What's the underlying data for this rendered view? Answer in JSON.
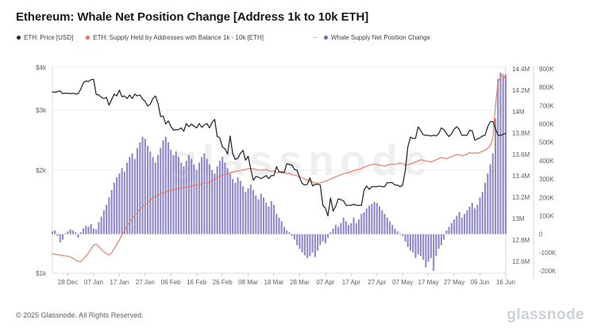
{
  "header": {
    "title": "Ethereum: Whale Net Position Change [Address 1k to 10k ETH]"
  },
  "legend": {
    "items": [
      {
        "label": "ETH: Price [USD]",
        "color": "#24292e"
      },
      {
        "label": "ETH: Supply Held by Addresses with Balance 1k - 10k [ETH]",
        "color": "#f06a4a"
      },
      {
        "label": "Whale Supply Net Position Change",
        "color": "#6e66c0"
      }
    ]
  },
  "watermark": "glassnode",
  "footer": {
    "copyright": "© 2025 Glassnode. All Rights Reserved.",
    "brand": "glassnode"
  },
  "chart_data": {
    "type": "mixed",
    "title": "Ethereum: Whale Net Position Change [Address 1k to 10k ETH]",
    "grid": true,
    "legend_position": "top-left",
    "x_start_label": "28 Dec",
    "x_end_label": "16 Jun",
    "x_tick_labels": [
      "28 Dec",
      "07 Jan",
      "17 Jan",
      "27 Jan",
      "06 Feb",
      "16 Feb",
      "26 Feb",
      "08 Mar",
      "18 Mar",
      "28 Mar",
      "07 Apr",
      "17 Apr",
      "27 Apr",
      "07 May",
      "17 May",
      "27 May",
      "06 Jun",
      "16 Jun"
    ],
    "x_tick_indices": [
      6,
      16,
      26,
      36,
      46,
      56,
      66,
      76,
      86,
      96,
      106,
      116,
      126,
      136,
      146,
      156,
      166,
      176
    ],
    "price_axis": {
      "side": "left",
      "scale": "log",
      "unit": "USD",
      "ticks": [
        {
          "label": "$4k",
          "value": 4000
        },
        {
          "label": "$3k",
          "value": 3000
        },
        {
          "label": "$2k",
          "value": 2000
        },
        {
          "label": "$1k",
          "value": 1000
        }
      ],
      "min": 1000,
      "max": 4000
    },
    "supply_axis": {
      "side": "right",
      "scale": "linear",
      "unit": "M ETH",
      "min": 12.6,
      "max": 14.4,
      "ticks": [
        {
          "label": "14.4M",
          "value": 14.4
        },
        {
          "label": "14.2M",
          "value": 14.2
        },
        {
          "label": "14M",
          "value": 14.0
        },
        {
          "label": "13.8M",
          "value": 13.8
        },
        {
          "label": "13.6M",
          "value": 13.6
        },
        {
          "label": "13.4M",
          "value": 13.4
        },
        {
          "label": "13.2M",
          "value": 13.2
        },
        {
          "label": "13M",
          "value": 13.0
        },
        {
          "label": "12.8M",
          "value": 12.8
        },
        {
          "label": "12.6M",
          "value": 12.6
        }
      ]
    },
    "netpos_axis": {
      "side": "far-right",
      "scale": "linear",
      "unit": "K ETH",
      "min": -200,
      "max": 900,
      "ticks": [
        {
          "label": "900K",
          "value": 900
        },
        {
          "label": "800K",
          "value": 800
        },
        {
          "label": "700K",
          "value": 700
        },
        {
          "label": "600K",
          "value": 600
        },
        {
          "label": "500K",
          "value": 500
        },
        {
          "label": "400K",
          "value": 400
        },
        {
          "label": "300K",
          "value": 300
        },
        {
          "label": "200K",
          "value": 200
        },
        {
          "label": "100K",
          "value": 100
        },
        {
          "label": "0",
          "value": 0
        },
        {
          "label": "-100K",
          "value": -100
        },
        {
          "label": "-200K",
          "value": -200
        }
      ]
    },
    "series": [
      {
        "name": "ETH: Price [USD]",
        "type": "line",
        "axis": "price",
        "color": "#22262b",
        "values": [
          3390,
          3380,
          3400,
          3410,
          3350,
          3360,
          3360,
          3350,
          3360,
          3340,
          3350,
          3450,
          3600,
          3650,
          3635,
          3680,
          3690,
          3330,
          3320,
          3270,
          3240,
          3270,
          3100,
          3220,
          3340,
          3300,
          3430,
          3280,
          3300,
          3240,
          3320,
          3240,
          3340,
          3300,
          3320,
          3230,
          3180,
          3080,
          3120,
          3240,
          3300,
          3140,
          2870,
          2880,
          2730,
          2790,
          2690,
          2620,
          2630,
          2630,
          2660,
          2600,
          2740,
          2680,
          2730,
          2690,
          2660,
          2740,
          2670,
          2710,
          2740,
          2660,
          2760,
          2820,
          2510,
          2490,
          2340,
          2310,
          2230,
          2520,
          2240,
          2150,
          2170,
          2240,
          2290,
          2140,
          2200,
          2020,
          1870,
          1920,
          1910,
          1890,
          1910,
          1930,
          1890,
          1930,
          1930,
          2050,
          1980,
          1970,
          1970,
          2090,
          2080,
          2070,
          2010,
          2000,
          1900,
          1830,
          1810,
          1820,
          1900,
          1800,
          1820,
          1820,
          1810,
          1580,
          1550,
          1470,
          1660,
          1520,
          1570,
          1650,
          1640,
          1630,
          1580,
          1580,
          1580,
          1590,
          1580,
          1580,
          1580,
          1750,
          1800,
          1760,
          1790,
          1790,
          1790,
          1800,
          1790,
          1790,
          1840,
          1840,
          1840,
          1810,
          1810,
          1790,
          1810,
          2000,
          2340,
          2500,
          2480,
          2480,
          2680,
          2610,
          2540,
          2530,
          2530,
          2520,
          2530,
          2520,
          2560,
          2660,
          2630,
          2560,
          2510,
          2560,
          2640,
          2680,
          2630,
          2530,
          2530,
          2530,
          2620,
          2610,
          2450,
          2470,
          2490,
          2520,
          2530,
          2680,
          2770,
          2780,
          2650,
          2530,
          2530,
          2550,
          2560
        ]
      },
      {
        "name": "ETH: Supply Held by Addresses with Balance 1k - 10k [ETH]",
        "type": "line",
        "axis": "supply",
        "color": "#e87f66",
        "values": [
          12.67,
          12.665,
          12.66,
          12.66,
          12.655,
          12.65,
          12.65,
          12.64,
          12.63,
          12.61,
          12.6,
          12.6,
          12.62,
          12.65,
          12.68,
          12.72,
          12.75,
          12.76,
          12.74,
          12.71,
          12.69,
          12.67,
          12.66,
          12.68,
          12.72,
          12.76,
          12.8,
          12.85,
          12.89,
          12.93,
          12.97,
          13.0,
          13.03,
          13.06,
          13.09,
          13.11,
          13.13,
          13.15,
          13.17,
          13.19,
          13.21,
          13.22,
          13.23,
          13.24,
          13.25,
          13.26,
          13.265,
          13.27,
          13.275,
          13.28,
          13.285,
          13.29,
          13.295,
          13.3,
          13.305,
          13.31,
          13.315,
          13.32,
          13.325,
          13.33,
          13.335,
          13.34,
          13.35,
          13.37,
          13.385,
          13.395,
          13.405,
          13.41,
          13.42,
          13.43,
          13.435,
          13.44,
          13.445,
          13.45,
          13.455,
          13.46,
          13.465,
          13.47,
          13.465,
          13.46,
          13.455,
          13.45,
          13.455,
          13.46,
          13.45,
          13.44,
          13.445,
          13.43,
          13.435,
          13.44,
          13.43,
          13.42,
          13.425,
          13.41,
          13.405,
          13.4,
          13.39,
          13.38,
          13.37,
          13.36,
          13.35,
          13.34,
          13.335,
          13.33,
          13.335,
          13.34,
          13.35,
          13.36,
          13.37,
          13.38,
          13.39,
          13.4,
          13.41,
          13.42,
          13.425,
          13.43,
          13.44,
          13.45,
          13.455,
          13.46,
          13.47,
          13.48,
          13.49,
          13.5,
          13.505,
          13.51,
          13.505,
          13.5,
          13.495,
          13.49,
          13.5,
          13.505,
          13.51,
          13.505,
          13.515,
          13.52,
          13.515,
          13.5,
          13.505,
          13.51,
          13.52,
          13.53,
          13.54,
          13.55,
          13.545,
          13.54,
          13.535,
          13.53,
          13.54,
          13.55,
          13.56,
          13.57,
          13.565,
          13.56,
          13.57,
          13.58,
          13.59,
          13.6,
          13.595,
          13.59,
          13.595,
          13.6,
          13.62,
          13.61,
          13.615,
          13.61,
          13.62,
          13.63,
          13.64,
          13.66,
          13.68,
          13.75,
          14.05,
          14.28,
          14.32,
          14.35,
          14.3
        ]
      },
      {
        "name": "Whale Supply Net Position Change",
        "type": "bar",
        "axis": "netpos",
        "color": "#7b74bf",
        "values": [
          15,
          20,
          -10,
          -45,
          -30,
          5,
          15,
          25,
          20,
          10,
          -20,
          10,
          30,
          45,
          40,
          55,
          30,
          25,
          65,
          95,
          130,
          160,
          200,
          240,
          280,
          310,
          330,
          360,
          340,
          390,
          420,
          440,
          410,
          470,
          500,
          530,
          520,
          480,
          450,
          420,
          390,
          430,
          470,
          510,
          530,
          500,
          460,
          430,
          450,
          420,
          390,
          370,
          400,
          430,
          410,
          380,
          350,
          390,
          420,
          440,
          410,
          380,
          350,
          330,
          370,
          400,
          420,
          390,
          360,
          330,
          300,
          280,
          310,
          290,
          260,
          230,
          250,
          270,
          240,
          210,
          190,
          220,
          200,
          170,
          150,
          180,
          160,
          110,
          90,
          70,
          40,
          20,
          10,
          -10,
          -30,
          -60,
          -80,
          -100,
          -115,
          -130,
          -120,
          -100,
          -125,
          -90,
          -60,
          -40,
          -50,
          -20,
          10,
          30,
          50,
          40,
          60,
          90,
          70,
          50,
          60,
          90,
          60,
          80,
          110,
          120,
          140,
          155,
          165,
          175,
          170,
          150,
          130,
          110,
          90,
          70,
          50,
          30,
          15,
          5,
          -10,
          -40,
          -70,
          -90,
          -100,
          -130,
          -110,
          -120,
          -140,
          -180,
          -150,
          -130,
          -200,
          -120,
          -80,
          -60,
          -30,
          20,
          40,
          60,
          80,
          100,
          120,
          90,
          110,
          130,
          150,
          170,
          140,
          160,
          200,
          230,
          280,
          330,
          380,
          440,
          630,
          845,
          880,
          860,
          870
        ]
      }
    ]
  }
}
